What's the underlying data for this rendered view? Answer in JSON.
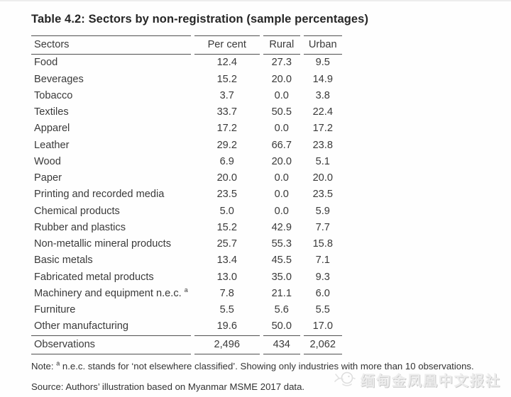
{
  "title": "Table 4.2: Sectors by non-registration (sample percentages)",
  "table": {
    "columns": [
      "Sectors",
      "Per cent",
      "Rural",
      "Urban"
    ],
    "rows": [
      {
        "label": "Food",
        "values": [
          "12.4",
          "27.3",
          "9.5"
        ]
      },
      {
        "label": "Beverages",
        "values": [
          "15.2",
          "20.0",
          "14.9"
        ]
      },
      {
        "label": "Tobacco",
        "values": [
          "3.7",
          "0.0",
          "3.8"
        ]
      },
      {
        "label": "Textiles",
        "values": [
          "33.7",
          "50.5",
          "22.4"
        ]
      },
      {
        "label": "Apparel",
        "values": [
          "17.2",
          "0.0",
          "17.2"
        ]
      },
      {
        "label": "Leather",
        "values": [
          "29.2",
          "66.7",
          "23.8"
        ]
      },
      {
        "label": "Wood",
        "values": [
          "6.9",
          "20.0",
          "5.1"
        ]
      },
      {
        "label": "Paper",
        "values": [
          "20.0",
          "0.0",
          "20.0"
        ]
      },
      {
        "label": "Printing and recorded media",
        "values": [
          "23.5",
          "0.0",
          "23.5"
        ]
      },
      {
        "label": "Chemical products",
        "values": [
          "5.0",
          "0.0",
          "5.9"
        ]
      },
      {
        "label": "Rubber and plastics",
        "values": [
          "15.2",
          "42.9",
          "7.7"
        ]
      },
      {
        "label": "Non-metallic mineral products",
        "values": [
          "25.7",
          "55.3",
          "15.8"
        ]
      },
      {
        "label": "Basic metals",
        "values": [
          "13.4",
          "45.5",
          "7.1"
        ]
      },
      {
        "label": "Fabricated metal products",
        "values": [
          "13.0",
          "35.0",
          "9.3"
        ]
      },
      {
        "label": "Machinery and equipment n.e.c.",
        "sup": "a",
        "values": [
          "7.8",
          "21.1",
          "6.0"
        ]
      },
      {
        "label": "Furniture",
        "values": [
          "5.5",
          "5.6",
          "5.5"
        ]
      },
      {
        "label": "Other manufacturing",
        "values": [
          "19.6",
          "50.0",
          "17.0"
        ]
      }
    ],
    "footer": {
      "label": "Observations",
      "values": [
        "2,496",
        "434",
        "2,062"
      ]
    }
  },
  "note": {
    "prefix": "Note: ",
    "sup": "a",
    "body": " n.e.c. stands for ‘not elsewhere classified’. Showing only industries with more than 10 observations."
  },
  "source": "Source: Authors’ illustration based on Myanmar MSME 2017 data.",
  "watermark": {
    "text": "缅甸金凤凰中文报社",
    "icon": "phoenix-logo"
  },
  "colors": {
    "text": "#3a3a3a",
    "rule": "#4f4f4f",
    "watermark": "#ececec"
  }
}
